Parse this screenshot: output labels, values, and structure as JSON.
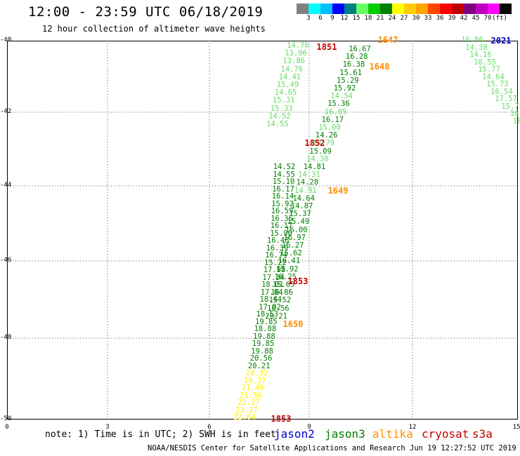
{
  "header": {
    "title": "12:00 - 23:59 UTC 06/18/2019",
    "subtitle": "12 hour collection of altimeter wave heights"
  },
  "colorbar": {
    "swatches": [
      "#808080",
      "#00ffff",
      "#00bfff",
      "#0000ff",
      "#008080",
      "#66ff66",
      "#00cc00",
      "#008000",
      "#ffff00",
      "#ffcc00",
      "#ffa500",
      "#ff4500",
      "#ff0000",
      "#c00000",
      "#800080",
      "#c000c0",
      "#ff00ff",
      "#000000"
    ],
    "labels": [
      "3",
      "6",
      "9",
      "12",
      "15",
      "18",
      "21",
      "24",
      "27",
      "30",
      "33",
      "36",
      "39",
      "42",
      "45",
      "70",
      "(ft)"
    ]
  },
  "axes": {
    "y_ticks": [
      "-40",
      "-42",
      "-44",
      "-46",
      "-48",
      "-50"
    ],
    "x_ticks": [
      "0",
      "3",
      "6",
      "9",
      "12",
      "15"
    ]
  },
  "satellite_colors": {
    "jason2": "#0000c8",
    "jason3": "#008000",
    "altika": "#ff8c00",
    "cryosat": "#c00000",
    "s3a": "#c00000"
  },
  "tracks": [
    {
      "name": "track-west-dark",
      "color": "#008000",
      "x": [
        445,
        449,
        453,
        457,
        461,
        465,
        469,
        473,
        477,
        481,
        485,
        489,
        493,
        497,
        501,
        505,
        509,
        513,
        517,
        521,
        525,
        529,
        533,
        537,
        541,
        545,
        549,
        553,
        557,
        561,
        565,
        569,
        573,
        577,
        581
      ],
      "points": [
        "22.04",
        "23.17",
        "22.27",
        "21.56",
        "21.49",
        "19.27",
        "20.32",
        "20.21",
        "20.56",
        "19.88",
        "19.85",
        "19.88",
        "18.88",
        "19.85",
        "18.53",
        "17.92",
        "18.44",
        "17.84",
        "18.01",
        "17.34",
        "17.98",
        "15.22",
        "16.74",
        "16.39",
        "16.48",
        "15.90",
        "16.17",
        "16.35",
        "16.59",
        "15.92",
        "16.14",
        "16.17",
        "15.10",
        "14.55",
        "14.52"
      ]
    },
    {
      "name": "track-west-light",
      "color": "#66dd66",
      "x": [
        415,
        413,
        411,
        409,
        407,
        405,
        403,
        401,
        399,
        397,
        395
      ],
      "points": [
        "14.76",
        "13.96",
        "13.86",
        "14.76",
        "14.41",
        "15.49",
        "14.65",
        "15.31",
        "15.33",
        "14.52",
        "14.55"
      ]
    },
    {
      "name": "track-middle",
      "color": "#008000",
      "x": [
        512,
        508,
        504,
        500,
        496,
        492,
        488,
        484,
        480,
        476,
        472,
        468,
        464,
        460,
        456,
        452,
        448,
        444,
        440,
        436,
        432,
        428,
        424,
        420,
        416,
        412,
        408,
        404,
        400,
        396,
        392,
        388,
        384,
        380,
        376
      ],
      "points": [
        "16.67",
        "16.28",
        "16.38",
        "15.61",
        "15.29",
        "15.92",
        "14.54",
        "15.36",
        "16.05",
        "16.17",
        "15.00",
        "14.26",
        "14.79",
        "15.09",
        "14.30",
        "14.81",
        "14.31",
        "14.28",
        "14.91",
        "14.64",
        "14.87",
        "15.37",
        "15.49",
        "16.00",
        "16.97",
        "16.27",
        "15.62",
        "16.41",
        "15.92",
        "16.25",
        "15.65",
        "16.86",
        "15.52",
        "16.56",
        "20.21"
      ]
    },
    {
      "name": "track-east",
      "color": "#66dd66",
      "x": [
        672,
        678,
        684,
        690,
        696,
        702,
        708,
        714,
        720,
        726,
        732,
        738
      ],
      "points": [
        "16.86",
        "14.38",
        "14.16",
        "16.55",
        "15.77",
        "14.64",
        "15.73",
        "16.54",
        "17.57",
        "15.7",
        "16",
        "18"
      ]
    }
  ],
  "passes": [
    {
      "label": "1851",
      "sat": "cryosat"
    },
    {
      "label": "1647",
      "sat": "altika"
    },
    {
      "label": "2021",
      "sat": "jason2"
    },
    {
      "label": "1648",
      "sat": "altika"
    },
    {
      "label": "1852",
      "sat": "cryosat"
    },
    {
      "label": "1649",
      "sat": "altika"
    },
    {
      "label": "1853",
      "sat": "cryosat"
    },
    {
      "label": "1650",
      "sat": "altika"
    },
    {
      "label": "1853",
      "sat": "cryosat"
    }
  ],
  "legend": {
    "note": "note: 1) Time is in UTC; 2) SWH is in feet",
    "jason2": "jason2",
    "jason3": "jason3",
    "altika": "altika",
    "cryosat": "cryosat",
    "s3a": "s3a"
  },
  "footer": {
    "credit": "NOAA/NESDIS Center for Satellite Applications and Research",
    "timestamp": "Jun 19 12:27:52 UTC 2019"
  }
}
